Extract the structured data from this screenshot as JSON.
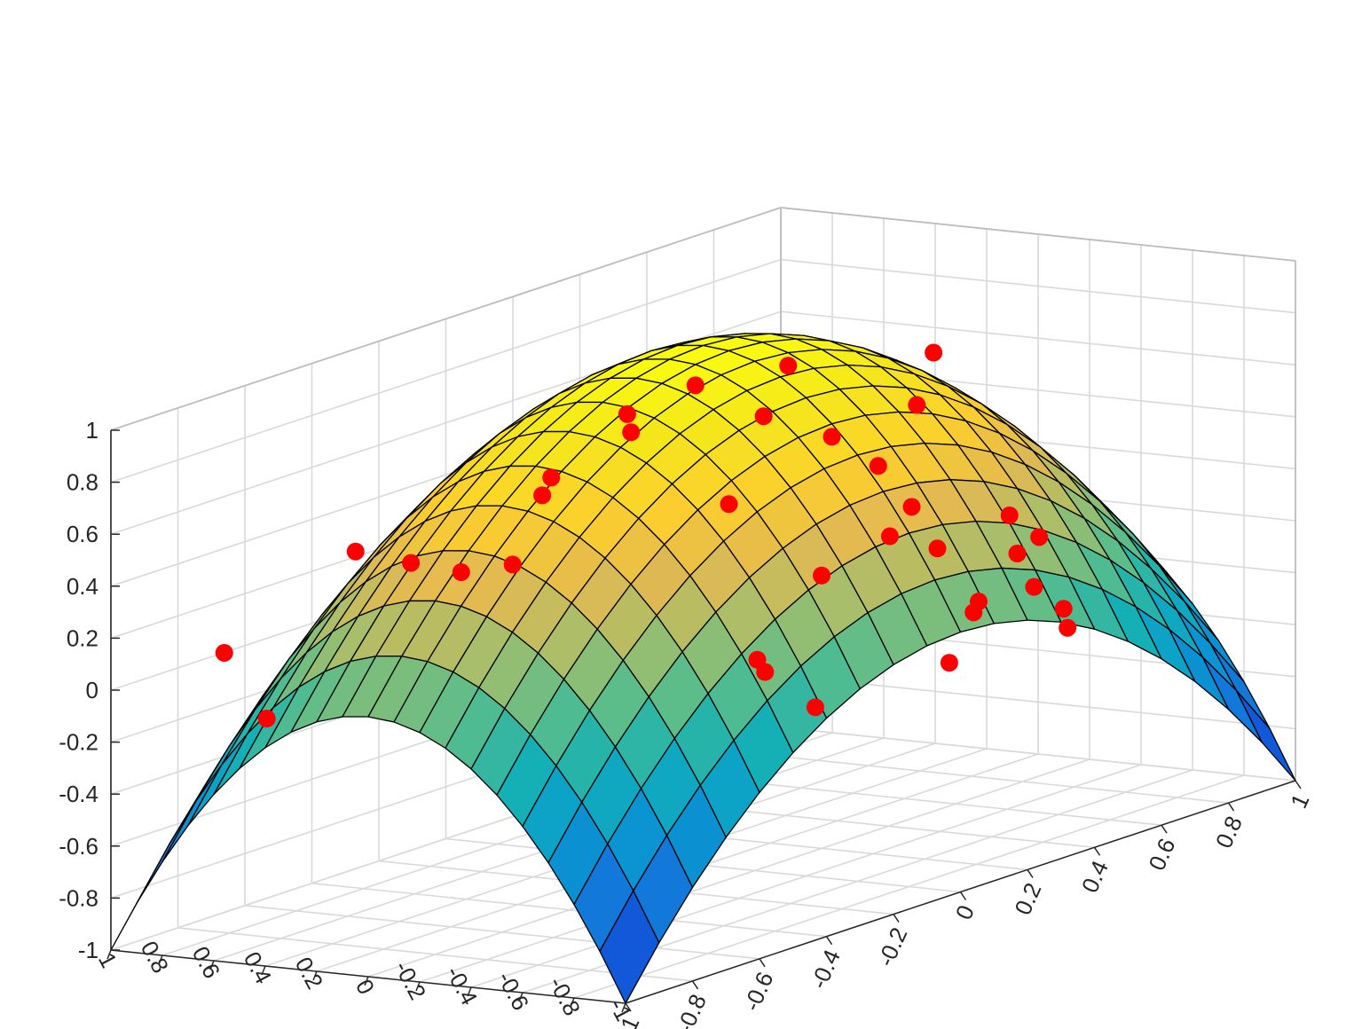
{
  "chart_data": {
    "type": "surface3d",
    "title": "",
    "xlabel": "",
    "ylabel": "",
    "zlabel": "",
    "surface": {
      "function": "z = 1 - x^2 - y^2",
      "x_range": [
        -1,
        1
      ],
      "y_range": [
        -1,
        1
      ],
      "grid_steps": 20,
      "colormap": "parula",
      "edge_color": "#000000"
    },
    "axes": {
      "x": {
        "lim": [
          -1,
          1
        ],
        "ticks": [
          -1,
          -0.8,
          -0.6,
          -0.4,
          -0.2,
          0,
          0.2,
          0.4,
          0.6,
          0.8,
          1
        ],
        "tick_labels": [
          "-1",
          "-0.8",
          "-0.6",
          "-0.4",
          "-0.2",
          "0",
          "0.2",
          "0.4",
          "0.6",
          "0.8",
          "1"
        ]
      },
      "y": {
        "lim": [
          -1,
          1
        ],
        "ticks": [
          -1,
          -0.8,
          -0.6,
          -0.4,
          -0.2,
          0,
          0.2,
          0.4,
          0.6,
          0.8,
          1
        ],
        "tick_labels": [
          "-1",
          "-0.8",
          "-0.6",
          "-0.4",
          "-0.2",
          "0",
          "0.2",
          "0.4",
          "0.6",
          "0.8",
          "1"
        ]
      },
      "z": {
        "lim": [
          -1,
          1
        ],
        "ticks": [
          -1,
          -0.8,
          -0.6,
          -0.4,
          -0.2,
          0,
          0.2,
          0.4,
          0.6,
          0.8,
          1
        ],
        "tick_labels": [
          "-1",
          "-0.8",
          "-0.6",
          "-0.4",
          "-0.2",
          "0",
          "0.2",
          "0.4",
          "0.6",
          "0.8",
          "1"
        ]
      },
      "grid": true,
      "box": "open-back"
    },
    "points": {
      "color": "#ff0000",
      "data": [
        {
          "x": -0.7,
          "y": 0.95,
          "z": 0.02
        },
        {
          "x": -0.55,
          "y": 0.98,
          "z": -0.3
        },
        {
          "x": -0.5,
          "y": 0.7,
          "z": 0.35
        },
        {
          "x": -0.45,
          "y": 0.55,
          "z": 0.3
        },
        {
          "x": -0.3,
          "y": 0.55,
          "z": 0.2
        },
        {
          "x": -0.3,
          "y": 0.35,
          "z": 0.25
        },
        {
          "x": -0.3,
          "y": 0.2,
          "z": 0.6
        },
        {
          "x": -0.25,
          "y": 0.3,
          "z": 0.5
        },
        {
          "x": -0.2,
          "y": 0.02,
          "z": 0.75
        },
        {
          "x": -0.15,
          "y": 0.1,
          "z": 0.79
        },
        {
          "x": -0.1,
          "y": -0.1,
          "z": 0.9
        },
        {
          "x": 0.1,
          "y": -0.2,
          "z": 0.9
        },
        {
          "x": 0.0,
          "y": -0.1,
          "z": 0.4
        },
        {
          "x": -0.05,
          "y": -0.3,
          "z": 0.78
        },
        {
          "x": 0.0,
          "y": -0.5,
          "z": 0.7
        },
        {
          "x": 0.15,
          "y": -0.7,
          "z": 0.98
        },
        {
          "x": 0.1,
          "y": -0.7,
          "z": 0.8
        },
        {
          "x": 0.1,
          "y": -0.55,
          "z": 0.55
        },
        {
          "x": 0.2,
          "y": -0.55,
          "z": 0.35
        },
        {
          "x": 0.25,
          "y": -0.4,
          "z": 0.2
        },
        {
          "x": 0.2,
          "y": -0.65,
          "z": 0.2
        },
        {
          "x": 0.3,
          "y": -0.8,
          "z": 0.3
        },
        {
          "x": 0.35,
          "y": -0.85,
          "z": 0.2
        },
        {
          "x": 0.4,
          "y": -0.7,
          "z": 0.1
        },
        {
          "x": 0.2,
          "y": -0.2,
          "z": 0.05
        },
        {
          "x": 0.4,
          "y": -0.55,
          "z": -0.1
        },
        {
          "x": 0.45,
          "y": -0.7,
          "z": -0.05
        },
        {
          "x": 0.5,
          "y": -0.75,
          "z": -0.15
        },
        {
          "x": 0.55,
          "y": -0.7,
          "z": -0.25
        },
        {
          "x": 0.5,
          "y": -0.4,
          "z": -0.2
        },
        {
          "x": 0.2,
          "y": 0.05,
          "z": -0.3
        },
        {
          "x": 0.3,
          "y": 0.15,
          "z": -0.4
        },
        {
          "x": 0.45,
          "y": 0.15,
          "z": -0.6
        },
        {
          "x": 0.85,
          "y": 0.15,
          "z": -0.6
        }
      ]
    }
  }
}
